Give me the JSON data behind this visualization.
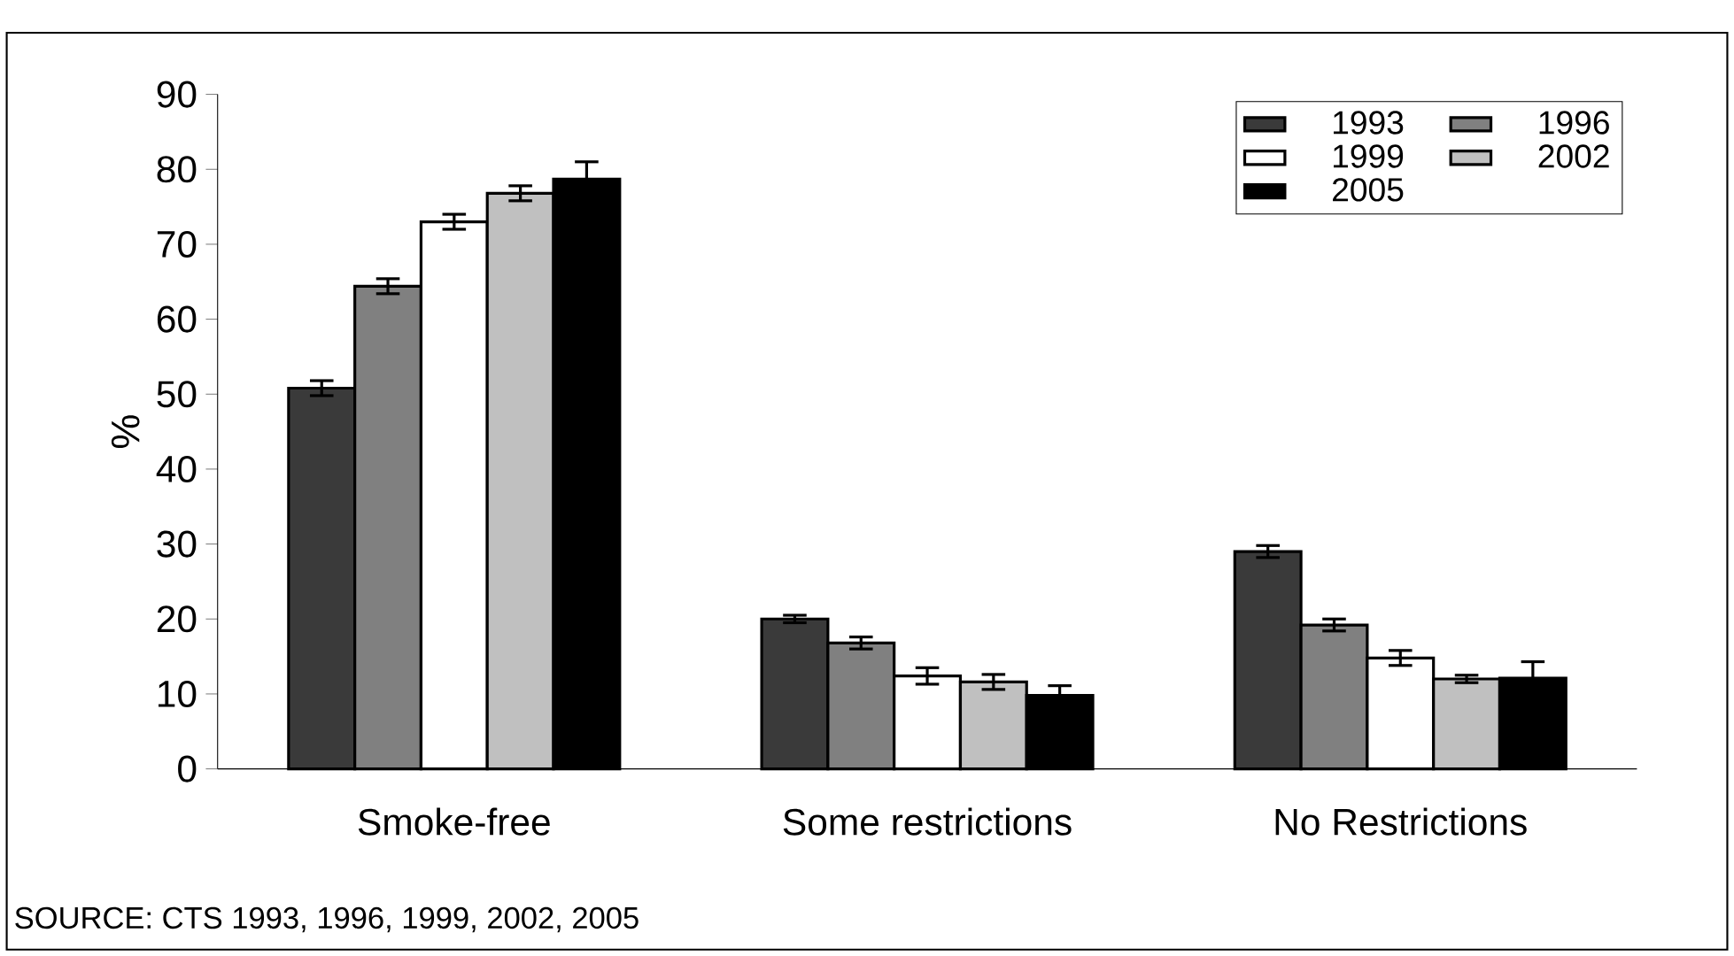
{
  "chart_data": {
    "type": "bar",
    "ylabel": "%",
    "categories": [
      "Smoke-free",
      "Some restrictions",
      "No Restrictions"
    ],
    "series": [
      {
        "name": "1993",
        "color": "#3a3a3a",
        "values": [
          50.8,
          20.0,
          29.0
        ],
        "errors": [
          1.0,
          0.5,
          0.8
        ]
      },
      {
        "name": "1996",
        "color": "#808080",
        "values": [
          64.4,
          16.8,
          19.2
        ],
        "errors": [
          1.0,
          0.8,
          0.8
        ]
      },
      {
        "name": "1999",
        "color": "#ffffff",
        "values": [
          73.0,
          12.4,
          14.8
        ],
        "errors": [
          1.0,
          1.1,
          1.0
        ]
      },
      {
        "name": "2002",
        "color": "#c0c0c0",
        "values": [
          76.8,
          11.6,
          12.0
        ],
        "errors": [
          1.0,
          1.0,
          0.5
        ]
      },
      {
        "name": "2005",
        "color": "#000000",
        "values": [
          78.7,
          9.8,
          12.1
        ],
        "errors": [
          2.3,
          1.3,
          2.2
        ]
      }
    ],
    "ylim": [
      0,
      90
    ],
    "yticks": [
      0,
      10,
      20,
      30,
      40,
      50,
      60,
      70,
      80,
      90
    ],
    "grid": false,
    "legend": "top right",
    "annotations": [
      "SOURCE: CTS 1993, 1996, 1999, 2002, 2005"
    ]
  }
}
